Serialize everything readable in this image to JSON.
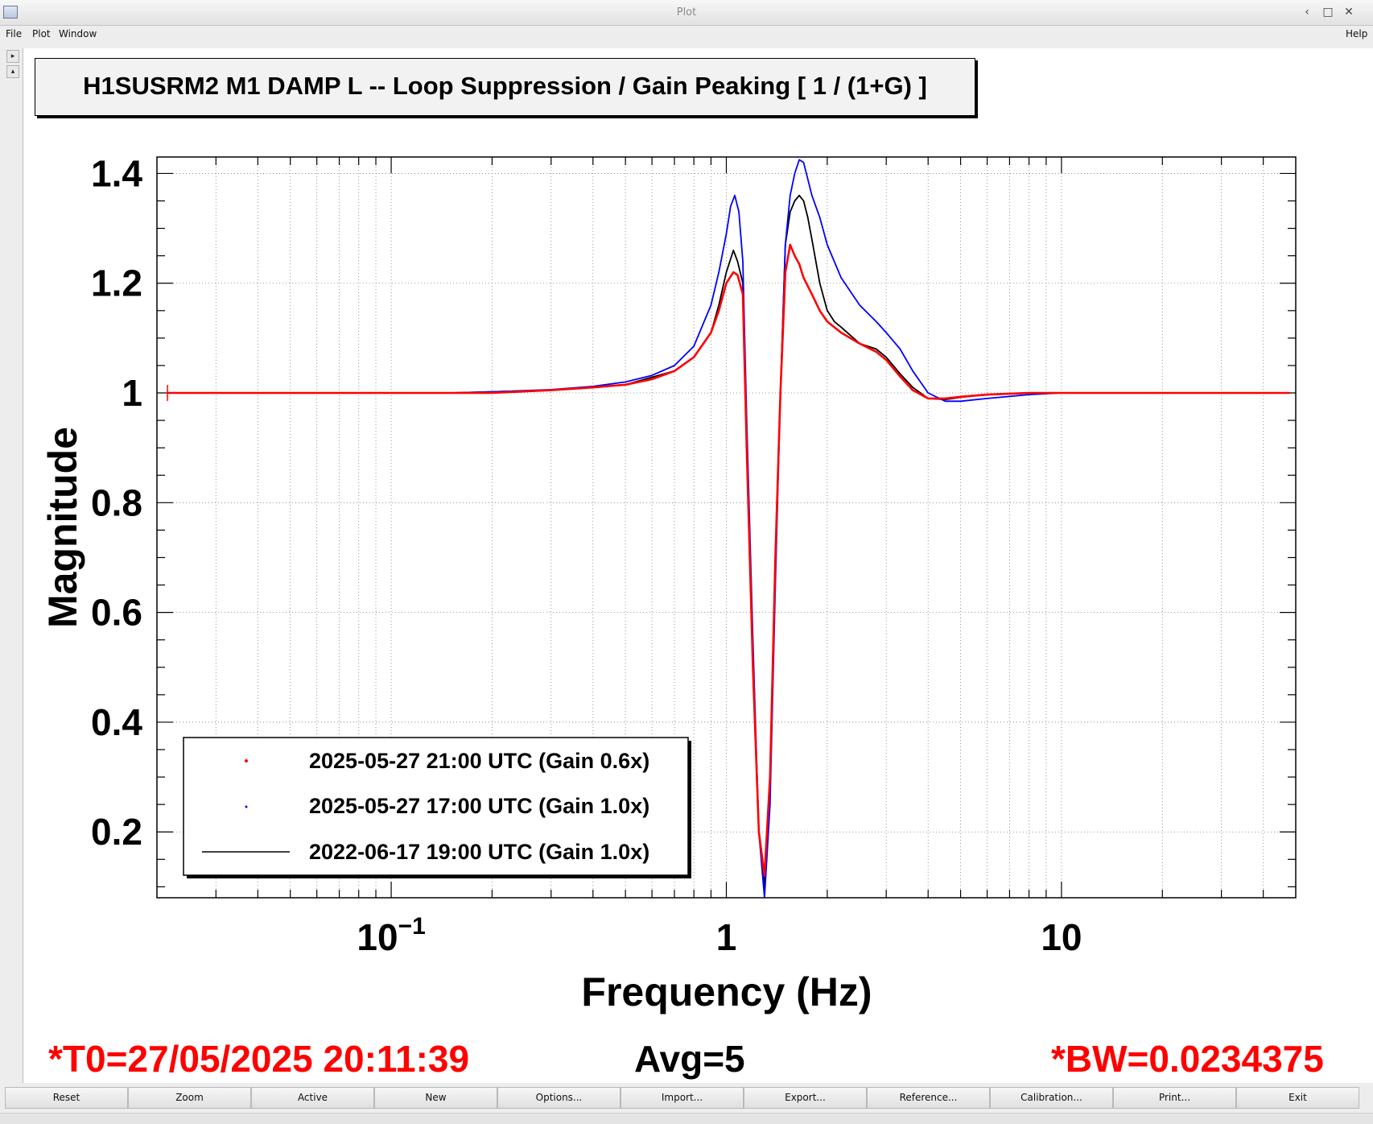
{
  "window": {
    "title": "Plot",
    "controls": {
      "minimize": "‹",
      "maximize": "□",
      "close": "✕"
    }
  },
  "menu": {
    "file": "File",
    "plot": "Plot",
    "window": "Window",
    "help": "Help"
  },
  "colors": {
    "red": "#ff0000",
    "blue": "#0000ff",
    "black": "#000000",
    "grid": "#7a7a7a"
  },
  "chart_data": {
    "type": "line",
    "title": "H1SUSRM2 M1 DAMP L -- Loop Suppression / Gain Peaking [ 1 / (1+G) ]",
    "xlabel": "Frequency (Hz)",
    "ylabel": "Magnitude",
    "xscale": "log",
    "xlim": [
      0.02,
      50
    ],
    "ylim": [
      0.08,
      1.43
    ],
    "x_ticks": [
      {
        "value": 0.1,
        "base": "10",
        "exp": "−1"
      },
      {
        "value": 1,
        "base": "1",
        "exp": ""
      },
      {
        "value": 10,
        "base": "10",
        "exp": ""
      }
    ],
    "y_ticks": [
      {
        "value": 0.2,
        "label": "0.2"
      },
      {
        "value": 0.4,
        "label": "0.4"
      },
      {
        "value": 0.6,
        "label": "0.6"
      },
      {
        "value": 0.8,
        "label": "0.8"
      },
      {
        "value": 1.0,
        "label": "1"
      },
      {
        "value": 1.2,
        "label": "1.2"
      },
      {
        "value": 1.4,
        "label": "1.4"
      }
    ],
    "grid": true,
    "legend_position": "bottom-left",
    "series": [
      {
        "name": "2025-05-27 21:00 UTC (Gain 0.6x)",
        "color": "#ff0000",
        "legend_marker": "point",
        "x": [
          0.0215,
          0.03,
          0.05,
          0.1,
          0.2,
          0.3,
          0.4,
          0.5,
          0.6,
          0.7,
          0.8,
          0.9,
          0.95,
          1.0,
          1.05,
          1.08,
          1.12,
          1.15,
          1.2,
          1.25,
          1.3,
          1.35,
          1.4,
          1.45,
          1.5,
          1.55,
          1.6,
          1.65,
          1.7,
          1.8,
          1.9,
          2.0,
          2.2,
          2.5,
          2.8,
          3.0,
          3.3,
          3.6,
          4.0,
          4.5,
          5.0,
          6.0,
          8.0,
          10,
          20,
          48
        ],
        "y": [
          1.0,
          1.0,
          1.0,
          1.0,
          1.0,
          1.005,
          1.01,
          1.015,
          1.025,
          1.04,
          1.065,
          1.11,
          1.15,
          1.2,
          1.22,
          1.215,
          1.18,
          0.9,
          0.5,
          0.2,
          0.12,
          0.3,
          0.7,
          1.0,
          1.22,
          1.27,
          1.25,
          1.235,
          1.21,
          1.18,
          1.15,
          1.13,
          1.11,
          1.09,
          1.075,
          1.06,
          1.03,
          1.005,
          0.99,
          0.99,
          0.993,
          0.997,
          1.0,
          1.0,
          1.0,
          1.0
        ]
      },
      {
        "name": "2025-05-27 17:00 UTC (Gain 1.0x)",
        "color": "#0000ff",
        "legend_marker": "point",
        "x": [
          0.15,
          0.2,
          0.3,
          0.4,
          0.5,
          0.6,
          0.7,
          0.8,
          0.9,
          0.95,
          1.0,
          1.03,
          1.06,
          1.09,
          1.12,
          1.15,
          1.2,
          1.25,
          1.3,
          1.35,
          1.4,
          1.45,
          1.5,
          1.55,
          1.6,
          1.65,
          1.7,
          1.75,
          1.8,
          1.9,
          2.0,
          2.2,
          2.5,
          2.8,
          3.0,
          3.3,
          3.6,
          4.0,
          4.5,
          5.0,
          6.0,
          8.0,
          10,
          20,
          48
        ],
        "y": [
          1.0,
          1.002,
          1.006,
          1.012,
          1.02,
          1.032,
          1.05,
          1.085,
          1.16,
          1.22,
          1.29,
          1.34,
          1.36,
          1.33,
          1.24,
          0.95,
          0.55,
          0.2,
          0.08,
          0.25,
          0.65,
          1.0,
          1.27,
          1.36,
          1.4,
          1.425,
          1.42,
          1.39,
          1.36,
          1.32,
          1.27,
          1.21,
          1.16,
          1.13,
          1.11,
          1.08,
          1.04,
          1.0,
          0.985,
          0.985,
          0.99,
          0.997,
          1.0,
          1.0,
          1.0
        ]
      },
      {
        "name": "2022-06-17 19:00 UTC (Gain 1.0x)",
        "color": "#000000",
        "legend_marker": "line",
        "x": [
          0.15,
          0.3,
          0.5,
          0.7,
          0.8,
          0.9,
          0.95,
          1.0,
          1.05,
          1.08,
          1.12,
          1.15,
          1.2,
          1.25,
          1.3,
          1.35,
          1.4,
          1.45,
          1.5,
          1.55,
          1.6,
          1.65,
          1.7,
          1.75,
          1.8,
          1.9,
          2.0,
          2.1,
          2.2,
          2.5,
          2.8,
          3.0,
          3.3,
          3.6,
          4.0,
          4.5,
          5.0,
          6.0,
          8.0,
          10,
          20,
          48
        ],
        "y": [
          1.0,
          1.005,
          1.015,
          1.04,
          1.065,
          1.11,
          1.16,
          1.22,
          1.26,
          1.24,
          1.2,
          0.9,
          0.5,
          0.2,
          0.1,
          0.3,
          0.7,
          1.0,
          1.27,
          1.33,
          1.35,
          1.36,
          1.35,
          1.32,
          1.28,
          1.2,
          1.15,
          1.13,
          1.12,
          1.09,
          1.08,
          1.065,
          1.035,
          1.01,
          0.99,
          0.988,
          0.992,
          0.997,
          1.0,
          1.0,
          1.0,
          1.0
        ]
      }
    ]
  },
  "footer": {
    "t0": "*T0=27/05/2025 20:11:39",
    "avg": "Avg=5",
    "bw": "*BW=0.0234375"
  },
  "buttons": [
    "Reset",
    "Zoom",
    "Active",
    "New",
    "Options...",
    "Import...",
    "Export...",
    "Reference...",
    "Calibration...",
    "Print...",
    "Exit"
  ]
}
